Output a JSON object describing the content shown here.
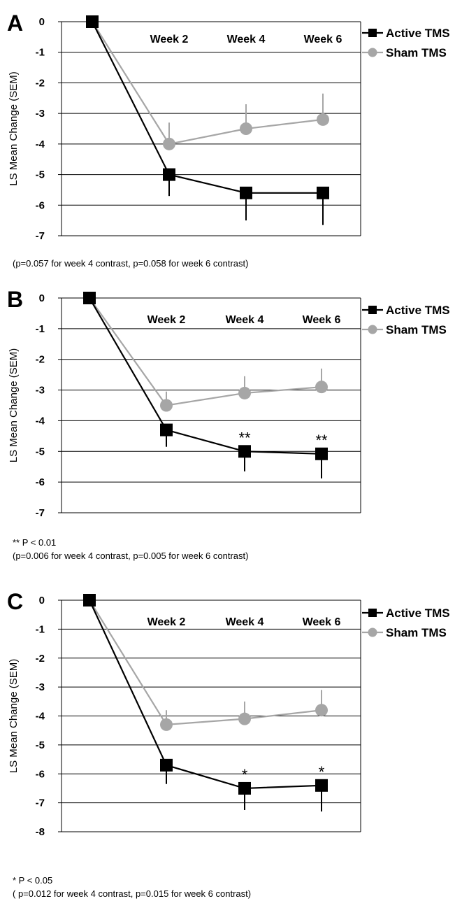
{
  "colors": {
    "active": "#000000",
    "sham": "#a6a6a6",
    "grid": "#000000"
  },
  "chart_data": [
    {
      "type": "line",
      "panel_label": "A",
      "ylabel": "LS Mean Change (SEM)",
      "ylim": [
        -7,
        0
      ],
      "yticks": [
        "0",
        "-1",
        "-2",
        "-3",
        "-4",
        "-5",
        "-6",
        "-7"
      ],
      "categories": [
        "",
        "Week 2",
        "Week 4",
        "Week 6"
      ],
      "legend": "right",
      "series": [
        {
          "name": "Active TMS",
          "values": [
            0,
            -5.0,
            -5.6,
            -5.6
          ],
          "sem": [
            0,
            0.7,
            0.9,
            1.05
          ],
          "significance": [
            "",
            "",
            "",
            ""
          ]
        },
        {
          "name": "Sham TMS",
          "values": [
            0,
            -4.0,
            -3.5,
            -3.2
          ],
          "sem": [
            0,
            0.7,
            0.8,
            0.85
          ],
          "significance": [
            "",
            "",
            "",
            ""
          ]
        }
      ],
      "footnote_sig": "",
      "footnote": "(p=0.057 for week 4 contrast, p=0.058 for week 6 contrast)"
    },
    {
      "type": "line",
      "panel_label": "B",
      "ylabel": "LS Mean Change (SEM)",
      "ylim": [
        -7,
        0
      ],
      "yticks": [
        "0",
        "-1",
        "-2",
        "-3",
        "-4",
        "-5",
        "-6",
        "-7"
      ],
      "categories": [
        "",
        "Week 2",
        "Week 4",
        "Week 6"
      ],
      "legend": "right",
      "series": [
        {
          "name": "Active TMS",
          "values": [
            0,
            -4.3,
            -5.0,
            -5.08
          ],
          "sem": [
            0,
            0.55,
            0.65,
            0.8
          ],
          "significance": [
            "",
            "",
            "**",
            "**"
          ]
        },
        {
          "name": "Sham TMS",
          "values": [
            0,
            -3.5,
            -3.1,
            -2.9
          ],
          "sem": [
            0,
            0.45,
            0.55,
            0.6
          ],
          "significance": [
            "",
            "",
            "",
            ""
          ]
        }
      ],
      "footnote_sig": "** P < 0.01",
      "footnote": "(p=0.006 for week 4 contrast, p=0.005 for week 6 contrast)"
    },
    {
      "type": "line",
      "panel_label": "C",
      "ylabel": "LS Mean Change (SEM)",
      "ylim": [
        -8,
        0
      ],
      "yticks": [
        "0",
        "-1",
        "-2",
        "-3",
        "-4",
        "-5",
        "-6",
        "-7",
        "-8"
      ],
      "categories": [
        "",
        "Week 2",
        "Week 4",
        "Week 6"
      ],
      "legend": "right",
      "series": [
        {
          "name": "Active TMS",
          "values": [
            0,
            -5.7,
            -6.5,
            -6.4
          ],
          "sem": [
            0,
            0.65,
            0.75,
            0.9
          ],
          "significance": [
            "",
            "",
            "*",
            "*"
          ]
        },
        {
          "name": "Sham TMS",
          "values": [
            0,
            -4.3,
            -4.1,
            -3.8
          ],
          "sem": [
            0,
            0.5,
            0.6,
            0.7
          ],
          "significance": [
            "",
            "",
            "",
            ""
          ]
        }
      ],
      "footnote_sig": "* P < 0.05",
      "footnote": "( p=0.012 for week 4 contrast, p=0.015 for week 6 contrast)"
    }
  ]
}
